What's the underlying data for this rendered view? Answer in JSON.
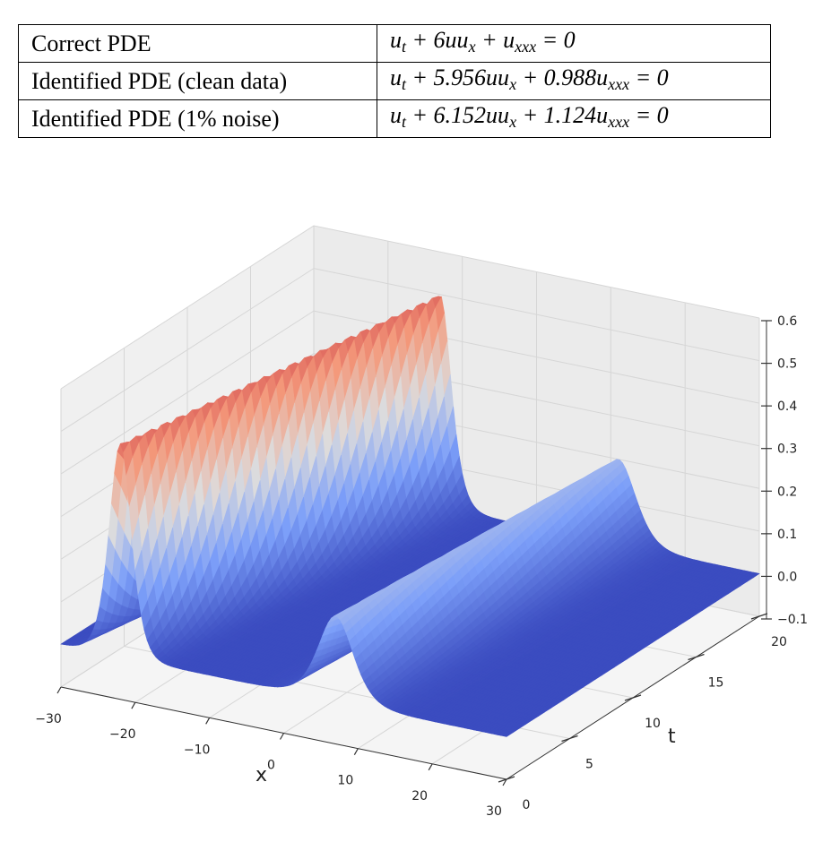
{
  "table": {
    "rows": [
      {
        "label": "Correct PDE",
        "eq": [
          {
            "t": "u"
          },
          {
            "s": "t"
          },
          {
            "t": " + 6uu"
          },
          {
            "s": "x"
          },
          {
            "t": " + u"
          },
          {
            "s": "xxx"
          },
          {
            "t": " = 0"
          }
        ]
      },
      {
        "label": "Identified PDE (clean data)",
        "eq": [
          {
            "t": "u"
          },
          {
            "s": "t"
          },
          {
            "t": " + 5.956uu"
          },
          {
            "s": "x"
          },
          {
            "t": " + 0.988u"
          },
          {
            "s": "xxx"
          },
          {
            "t": " = 0"
          }
        ]
      },
      {
        "label": "Identified PDE (1% noise)",
        "eq": [
          {
            "t": "u"
          },
          {
            "s": "t"
          },
          {
            "t": " + 6.152uu"
          },
          {
            "s": "x"
          },
          {
            "t": " + 1.124u"
          },
          {
            "s": "xxx"
          },
          {
            "t": " = 0"
          }
        ]
      }
    ]
  },
  "chart_data": {
    "type": "surface",
    "xlabel": "x",
    "ylabel": "t",
    "xlim": [
      -30,
      30
    ],
    "ylim": [
      0,
      20
    ],
    "zlim": [
      -0.1,
      0.6
    ],
    "x_ticks": [
      "−30",
      "−20",
      "−10",
      "0",
      "10",
      "20",
      "30"
    ],
    "y_ticks": [
      "0",
      "5",
      "10",
      "15",
      "20"
    ],
    "z_ticks": [
      "−0.1",
      "0.0",
      "0.1",
      "0.2",
      "0.3",
      "0.4",
      "0.5",
      "0.6"
    ],
    "colormap": "coolwarm",
    "colors": {
      "low": "#3b4cc0",
      "mid": "#dddcdc",
      "high": "#b40426"
    },
    "solitons": [
      {
        "name": "",
        "peak": 0.5,
        "x_at_t0": -22,
        "x_at_t20": -13
      },
      {
        "name": "",
        "peak": 0.2,
        "x_at_t0": 7,
        "x_at_t20": 11
      }
    ]
  }
}
